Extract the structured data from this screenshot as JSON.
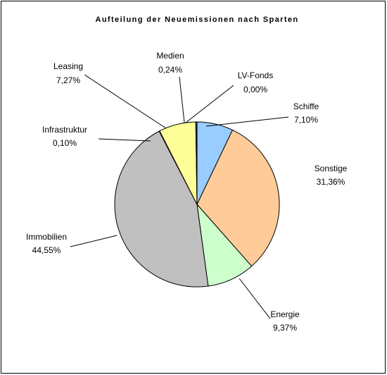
{
  "chart_data": {
    "type": "pie",
    "title": "Aufteilung der Neuemissionen nach Sparten",
    "categories": [
      "Schiffe",
      "Sonstige",
      "Energie",
      "Immobilien",
      "Infrastruktur",
      "Leasing",
      "Medien",
      "LV-Fonds"
    ],
    "values": [
      7.1,
      31.36,
      9.37,
      44.55,
      0.1,
      7.27,
      0.24,
      0.0
    ],
    "value_labels": [
      "7,10%",
      "31,36%",
      "9,37%",
      "44,55%",
      "0,10%",
      "7,27%",
      "0,24%",
      "0,00%"
    ],
    "colors": [
      "#99ccff",
      "#ffcc99",
      "#ccffcc",
      "#c0c0c0",
      "#9999ff",
      "#ffff99",
      "#333399",
      "#ffffff"
    ]
  }
}
